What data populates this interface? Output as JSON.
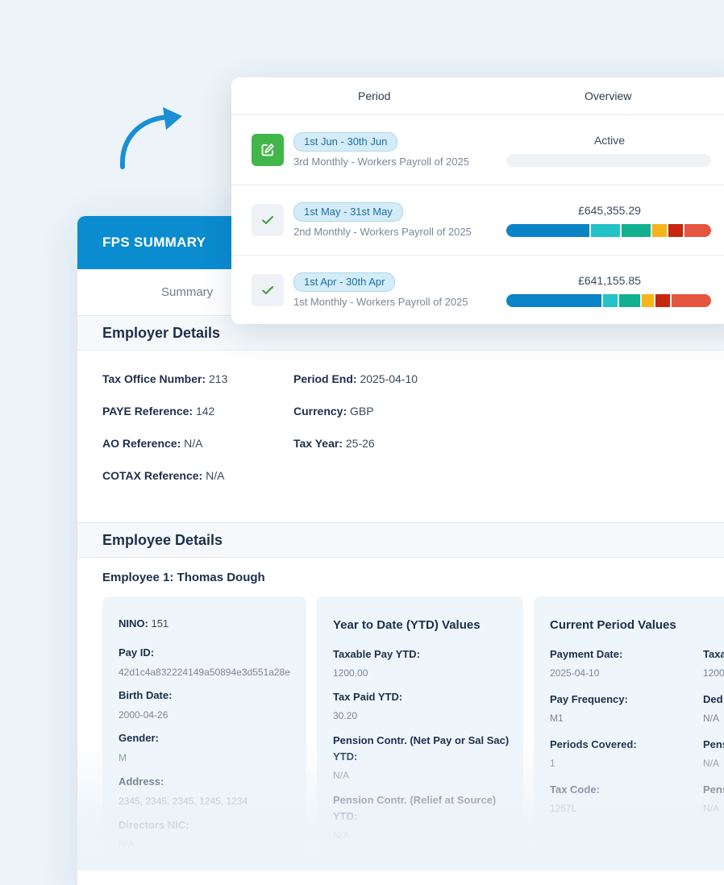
{
  "fps": {
    "header": "FPS SUMMARY",
    "tab": "Summary",
    "employer_section": "Employer Details",
    "employer_left": [
      {
        "label": "Tax Office Number:",
        "value": "213"
      },
      {
        "label": "PAYE Reference:",
        "value": "142"
      },
      {
        "label": "AO Reference:",
        "value": "N/A"
      },
      {
        "label": "COTAX Reference:",
        "value": "N/A"
      }
    ],
    "employer_right": [
      {
        "label": "Period End:",
        "value": "2025-04-10"
      },
      {
        "label": "Currency:",
        "value": "GBP"
      },
      {
        "label": "Tax Year:",
        "value": "25-26"
      }
    ],
    "employee_section": "Employee Details",
    "employee_title": "Employee 1: Thomas Dough",
    "personal": {
      "nino_label": "NINO:",
      "nino_value": "151",
      "fields": [
        {
          "label": "Pay ID:",
          "value": "42d1c4a832224149a50894e3d551a28e"
        },
        {
          "label": "Birth Date:",
          "value": "2000-04-26"
        },
        {
          "label": "Gender:",
          "value": "M"
        },
        {
          "label": "Address:",
          "value": "2345, 2345, 2345, 1245, 1234"
        },
        {
          "label": "Directors NIC:",
          "value": "N/A"
        }
      ]
    },
    "ytd": {
      "title": "Year to Date (YTD) Values",
      "f1_label": "Taxable Pay YTD:",
      "f1_value": "1200.00",
      "f2_label": "Tax Paid YTD:",
      "f2_value": "30.20",
      "f3_label_1": "Pension Contr. (Net Pay or Sal Sac)",
      "f3_label_2": "YTD:",
      "f3_value": "N/A",
      "f4_label_1": "Pension Contr. (Relief at Source)",
      "f4_label_2": "YTD:",
      "f4_value": "N/A"
    },
    "current": {
      "title": "Current Period Values",
      "left": [
        {
          "label": "Payment Date:",
          "value": "2025-04-10"
        },
        {
          "label": "Pay Frequency:",
          "value": "M1"
        },
        {
          "label": "Periods Covered:",
          "value": "1"
        },
        {
          "label": "Tax Code:",
          "value": "1257L"
        }
      ],
      "right": [
        {
          "label": "Taxa",
          "value": "1200"
        },
        {
          "label": "Ded",
          "value": "N/A"
        },
        {
          "label": "Pens",
          "value": "N/A"
        },
        {
          "label": "Pens",
          "value": "N/A"
        }
      ]
    }
  },
  "periods": {
    "col_period": "Period",
    "col_overview": "Overview",
    "rows": [
      {
        "range": "1st Jun - 30th Jun",
        "desc": "3rd Monthly - Workers Payroll of 2025",
        "status": "Active",
        "icon": "edit-icon",
        "segments": []
      },
      {
        "range": "1st May - 31st May",
        "desc": "2nd Monthly - Workers Payroll of 2025",
        "status": "£645,355.29",
        "icon": "check-icon",
        "segments": [
          {
            "color": "#0a84c6",
            "weight": 40
          },
          {
            "color": "#23c2c6",
            "weight": 14
          },
          {
            "color": "#12b08e",
            "weight": 14
          },
          {
            "color": "#f6b41c",
            "weight": 7
          },
          {
            "color": "#c8260e",
            "weight": 7
          },
          {
            "color": "#e6553f",
            "weight": 13
          }
        ]
      },
      {
        "range": "1st Apr - 30th Apr",
        "desc": "1st Monthly - Workers Payroll of 2025",
        "status": "£641,155.85",
        "icon": "check-icon",
        "segments": [
          {
            "color": "#0a84c6",
            "weight": 46
          },
          {
            "color": "#23c2c6",
            "weight": 7
          },
          {
            "color": "#12b08e",
            "weight": 10
          },
          {
            "color": "#f6b41c",
            "weight": 6
          },
          {
            "color": "#c8260e",
            "weight": 7
          },
          {
            "color": "#e6553f",
            "weight": 19
          }
        ]
      }
    ]
  }
}
